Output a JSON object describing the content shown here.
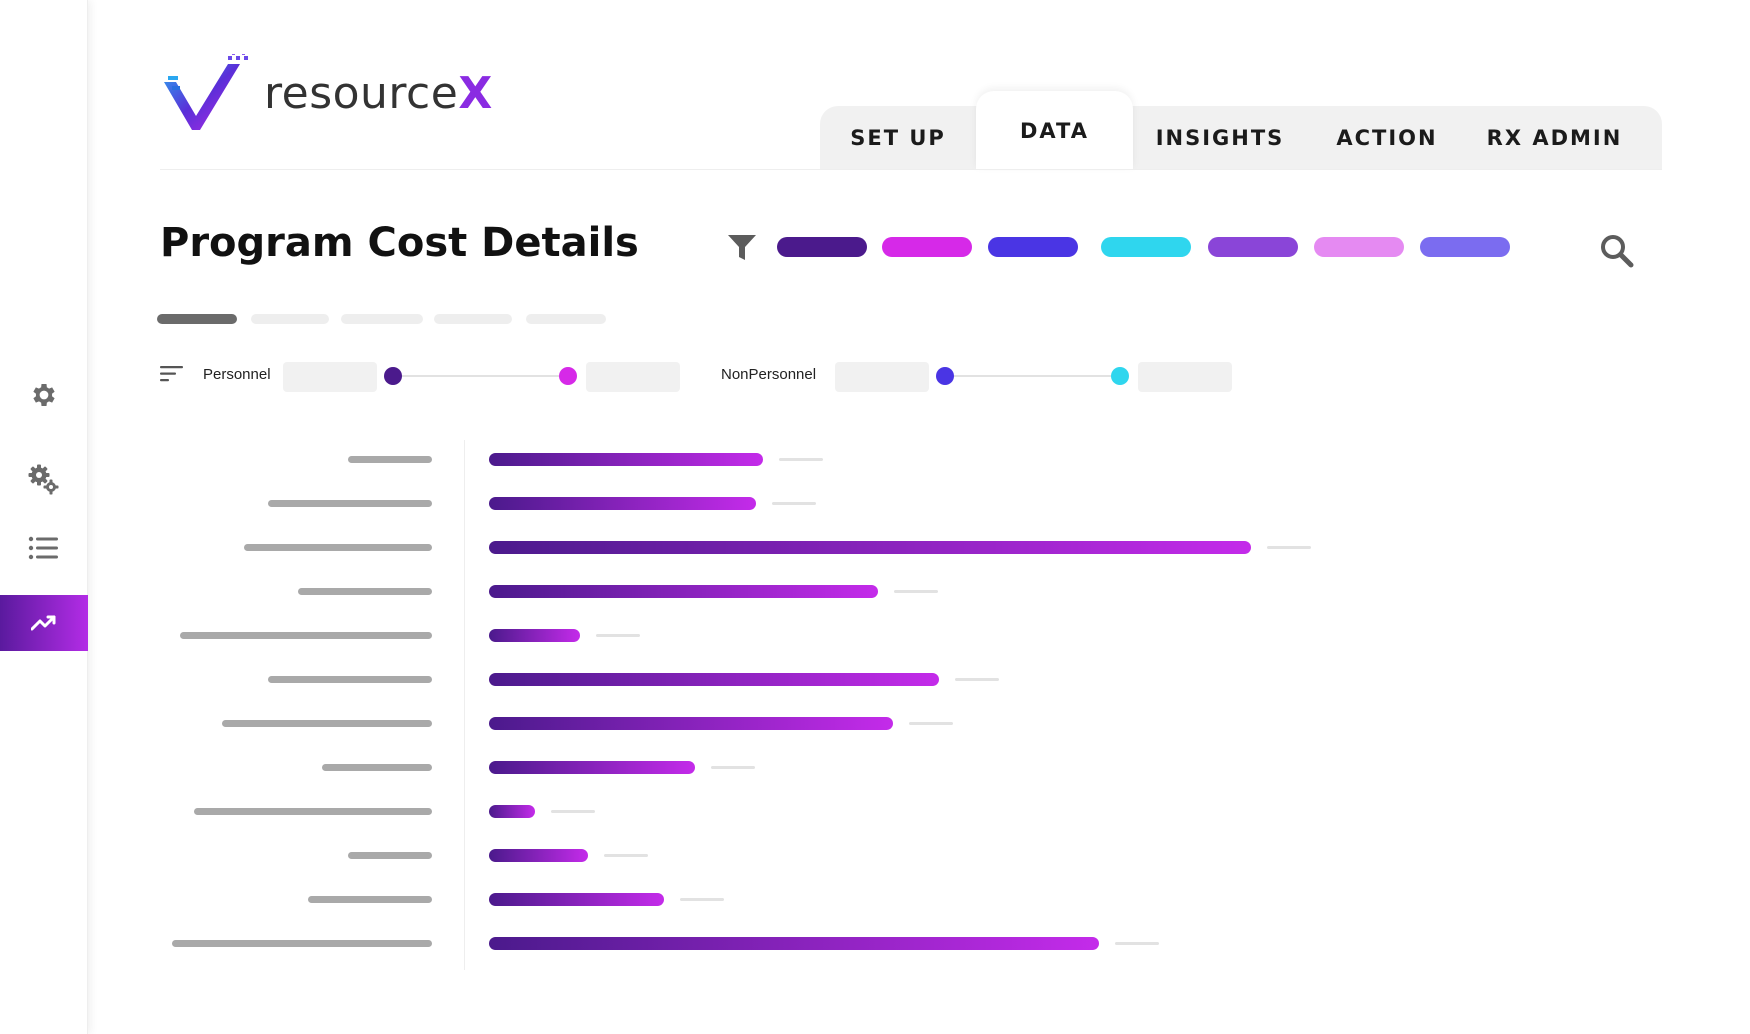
{
  "app": {
    "logo_text": "resource",
    "logo_accent": "X"
  },
  "colors": {
    "brand_purple": "#5a1a9e",
    "brand_magenta": "#c42bea",
    "legend": [
      "#4b1a8c",
      "#d629e8",
      "#4a35e4",
      "#2fd6ee",
      "#8a45d8",
      "#e58af2",
      "#7b6cf0"
    ]
  },
  "sidebar": {
    "items": [
      {
        "icon": "gear-icon",
        "active": false
      },
      {
        "icon": "gears-icon",
        "active": false
      },
      {
        "icon": "list-icon",
        "active": false
      },
      {
        "icon": "trend-up-icon",
        "active": true
      }
    ]
  },
  "header": {
    "tabs": [
      {
        "label": "SET UP",
        "active": false
      },
      {
        "label": "DATA",
        "active": true
      },
      {
        "label": "INSIGHTS",
        "active": false
      },
      {
        "label": "ACTION",
        "active": false
      },
      {
        "label": "RX ADMIN",
        "active": false
      }
    ]
  },
  "main": {
    "title": "Program Cost Details",
    "filter_icon": "funnel-icon",
    "search_icon": "search-icon",
    "sort_icon": "sort-icon",
    "subtabs_active_index": 0,
    "ranges": [
      {
        "label": "Personnel",
        "start_color": "#4b1a8c",
        "end_color": "#d629e8"
      },
      {
        "label": "NonPersonnel",
        "start_color": "#4a35e4",
        "end_color": "#2fd6ee"
      }
    ]
  },
  "chart_data": {
    "type": "bar",
    "orientation": "horizontal",
    "title": "",
    "xlabel": "",
    "ylabel": "",
    "categories": [
      "",
      "",
      "",
      "",
      "",
      "",
      "",
      "",
      "",
      "",
      "",
      ""
    ],
    "values": [
      36,
      35,
      100,
      51,
      12,
      59,
      53,
      27,
      6,
      13,
      23,
      80
    ],
    "xlim": [
      0,
      100
    ],
    "grid": false,
    "legend": "none"
  }
}
